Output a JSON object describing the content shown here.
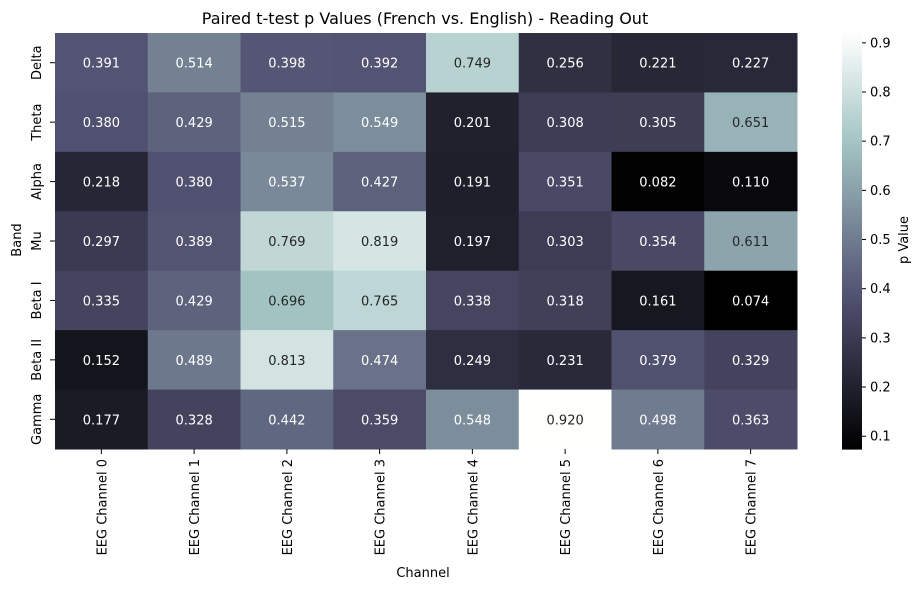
{
  "chart_data": {
    "type": "heatmap",
    "title": "Paired t-test p Values (French vs. English) - Reading Out",
    "xlabel": "Channel",
    "ylabel": "Band",
    "colorbar_label": "p Value",
    "colormap": "bone",
    "value_range": [
      0.074,
      0.92
    ],
    "colorbar_ticks": [
      "0.1",
      "0.2",
      "0.3",
      "0.4",
      "0.5",
      "0.6",
      "0.7",
      "0.8",
      "0.9"
    ],
    "x_categories": [
      "EEG Channel 0",
      "EEG Channel 1",
      "EEG Channel 2",
      "EEG Channel 3",
      "EEG Channel 4",
      "EEG Channel 5",
      "EEG Channel 6",
      "EEG Channel 7"
    ],
    "y_categories": [
      "Delta",
      "Theta",
      "Alpha",
      "Mu",
      "Beta I",
      "Beta II",
      "Gamma"
    ],
    "values": [
      [
        0.391,
        0.514,
        0.398,
        0.392,
        0.749,
        0.256,
        0.221,
        0.227
      ],
      [
        0.38,
        0.429,
        0.515,
        0.549,
        0.201,
        0.308,
        0.305,
        0.651
      ],
      [
        0.218,
        0.38,
        0.537,
        0.427,
        0.191,
        0.351,
        0.082,
        0.11
      ],
      [
        0.297,
        0.389,
        0.769,
        0.819,
        0.197,
        0.303,
        0.354,
        0.611
      ],
      [
        0.335,
        0.429,
        0.696,
        0.765,
        0.338,
        0.318,
        0.161,
        0.074
      ],
      [
        0.152,
        0.489,
        0.813,
        0.474,
        0.249,
        0.231,
        0.379,
        0.329
      ],
      [
        0.177,
        0.328,
        0.442,
        0.359,
        0.548,
        0.92,
        0.498,
        0.363
      ]
    ],
    "value_format": "3 decimals"
  }
}
